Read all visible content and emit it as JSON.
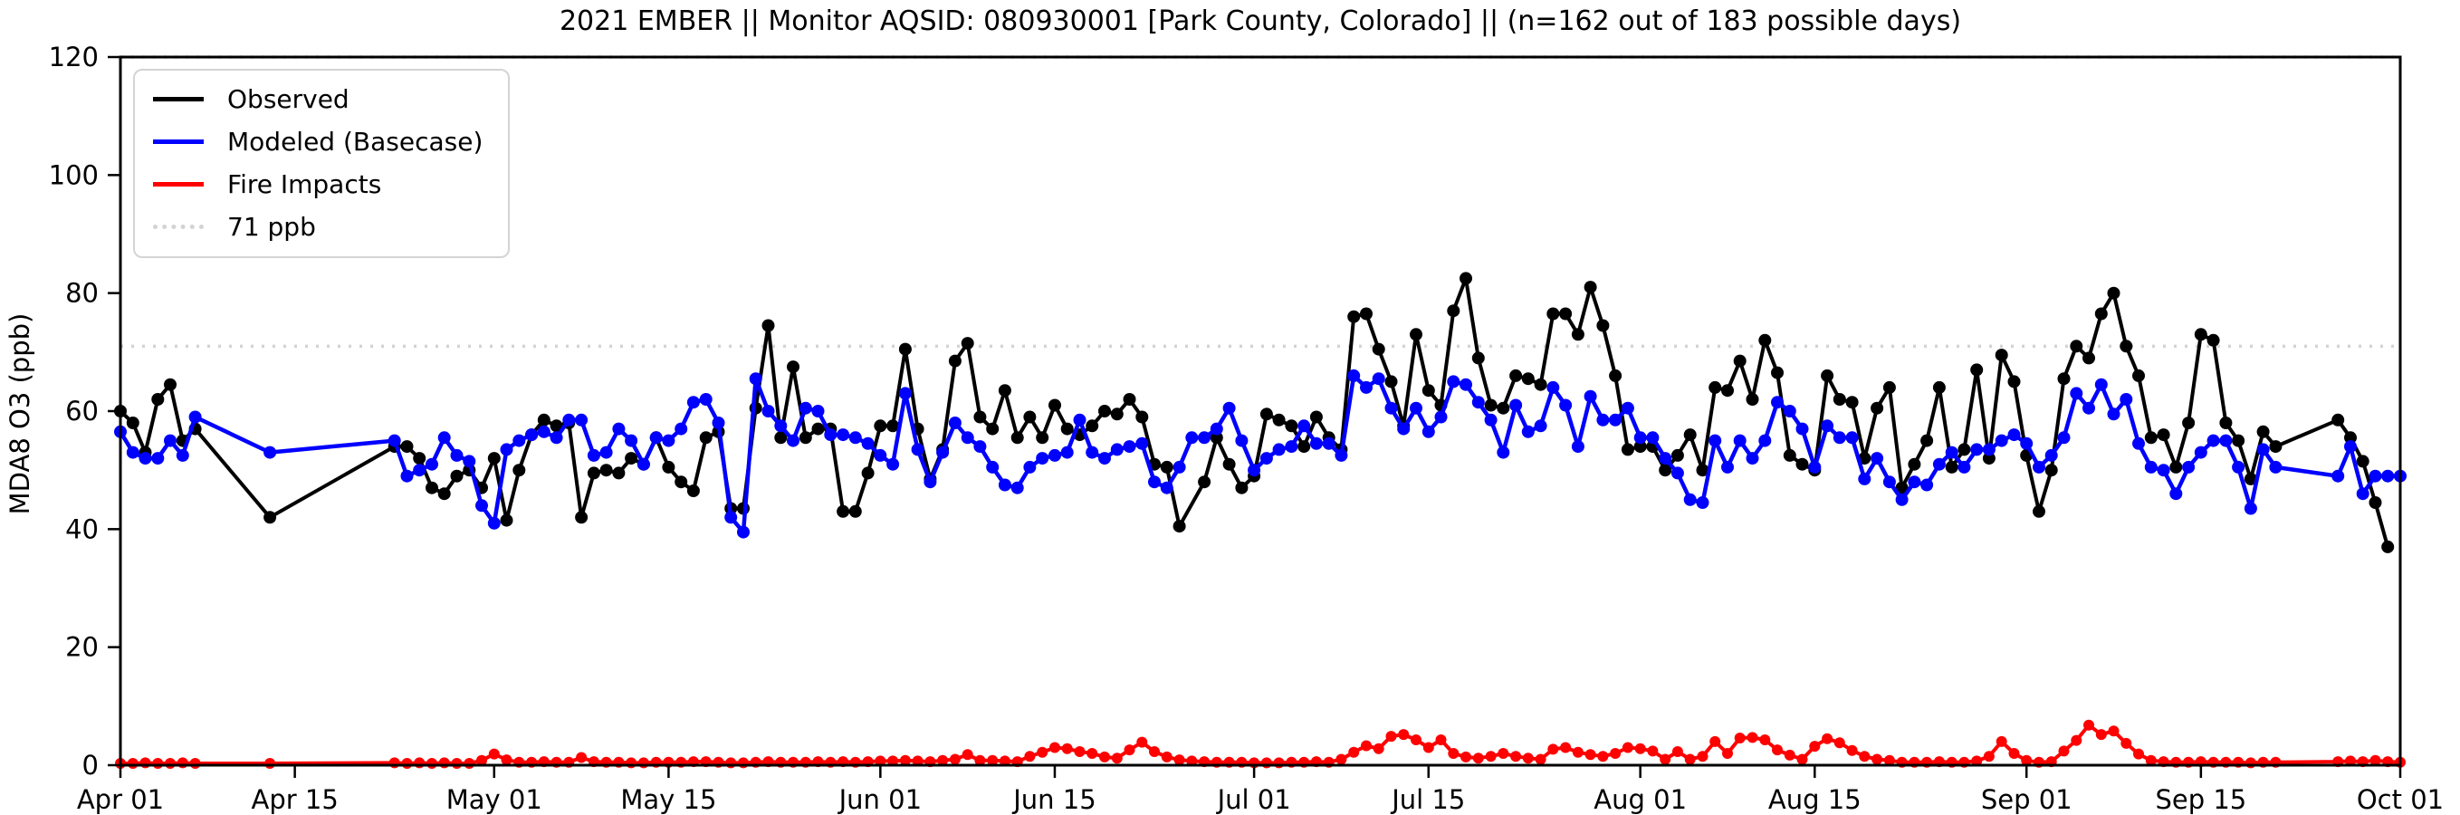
{
  "page": {
    "background": "#ffffff"
  },
  "chart_data": {
    "type": "line",
    "title": "2021 EMBER || Monitor AQSID: 080930001 [Park County, Colorado] || (n=162 out of 183 possible days)",
    "ylabel": "MDA8 O3 (ppb)",
    "xlabel": "",
    "ylim": [
      0,
      120
    ],
    "yticks": [
      0,
      20,
      40,
      60,
      80,
      100,
      120
    ],
    "x_span_days": 183,
    "grid": false,
    "legend_position": "upper-left",
    "xticks": [
      {
        "label": "Apr 01",
        "day": 0
      },
      {
        "label": "Apr 15",
        "day": 14
      },
      {
        "label": "May 01",
        "day": 30
      },
      {
        "label": "May 15",
        "day": 44
      },
      {
        "label": "Jun 01",
        "day": 61
      },
      {
        "label": "Jun 15",
        "day": 75
      },
      {
        "label": "Jul 01",
        "day": 91
      },
      {
        "label": "Jul 15",
        "day": 105
      },
      {
        "label": "Aug 01",
        "day": 122
      },
      {
        "label": "Aug 15",
        "day": 136
      },
      {
        "label": "Sep 01",
        "day": 153
      },
      {
        "label": "Sep 15",
        "day": 167
      },
      {
        "label": "Oct 01",
        "day": 183
      }
    ],
    "reference_lines": [
      {
        "value": 71,
        "label": "71 ppb",
        "color": "#d3d3d3",
        "dash": "dotted"
      },
      {
        "value": 120,
        "label": "",
        "color": "#d3d3d3",
        "dash": "dotted"
      }
    ],
    "legend": [
      {
        "label": "Observed",
        "color": "#000000",
        "dash": "solid"
      },
      {
        "label": "Modeled (Basecase)",
        "color": "#0000ff",
        "dash": "solid"
      },
      {
        "label": "Fire Impacts",
        "color": "#ff0000",
        "dash": "solid"
      },
      {
        "label": "71 ppb",
        "color": "#d3d3d3",
        "dash": "dotted"
      }
    ],
    "dates": [
      "Apr 01",
      "Apr 02",
      "Apr 03",
      "Apr 04",
      "Apr 05",
      "Apr 06",
      "Apr 07",
      "Apr 08",
      "Apr 09",
      "Apr 10",
      "Apr 11",
      "Apr 12",
      "Apr 13",
      "Apr 14",
      "Apr 15",
      "Apr 16",
      "Apr 17",
      "Apr 18",
      "Apr 19",
      "Apr 20",
      "Apr 21",
      "Apr 22",
      "Apr 23",
      "Apr 24",
      "Apr 25",
      "Apr 26",
      "Apr 27",
      "Apr 28",
      "Apr 29",
      "Apr 30",
      "May 01",
      "May 02",
      "May 03",
      "May 04",
      "May 05",
      "May 06",
      "May 07",
      "May 08",
      "May 09",
      "May 10",
      "May 11",
      "May 12",
      "May 13",
      "May 14",
      "May 15",
      "May 16",
      "May 17",
      "May 18",
      "May 19",
      "May 20",
      "May 21",
      "May 22",
      "May 23",
      "May 24",
      "May 25",
      "May 26",
      "May 27",
      "May 28",
      "May 29",
      "May 30",
      "May 31",
      "Jun 01",
      "Jun 02",
      "Jun 03",
      "Jun 04",
      "Jun 05",
      "Jun 06",
      "Jun 07",
      "Jun 08",
      "Jun 09",
      "Jun 10",
      "Jun 11",
      "Jun 12",
      "Jun 13",
      "Jun 14",
      "Jun 15",
      "Jun 16",
      "Jun 17",
      "Jun 18",
      "Jun 19",
      "Jun 20",
      "Jun 21",
      "Jun 22",
      "Jun 23",
      "Jun 24",
      "Jun 25",
      "Jun 26",
      "Jun 27",
      "Jun 28",
      "Jun 29",
      "Jun 30",
      "Jul 01",
      "Jul 02",
      "Jul 03",
      "Jul 04",
      "Jul 05",
      "Jul 06",
      "Jul 07",
      "Jul 08",
      "Jul 09",
      "Jul 10",
      "Jul 11",
      "Jul 12",
      "Jul 13",
      "Jul 14",
      "Jul 15",
      "Jul 16",
      "Jul 17",
      "Jul 18",
      "Jul 19",
      "Jul 20",
      "Jul 21",
      "Jul 22",
      "Jul 23",
      "Jul 24",
      "Jul 25",
      "Jul 26",
      "Jul 27",
      "Jul 28",
      "Jul 29",
      "Jul 30",
      "Jul 31",
      "Aug 01",
      "Aug 02",
      "Aug 03",
      "Aug 04",
      "Aug 05",
      "Aug 06",
      "Aug 07",
      "Aug 08",
      "Aug 09",
      "Aug 10",
      "Aug 11",
      "Aug 12",
      "Aug 13",
      "Aug 14",
      "Aug 15",
      "Aug 16",
      "Aug 17",
      "Aug 18",
      "Aug 19",
      "Aug 20",
      "Aug 21",
      "Aug 22",
      "Aug 23",
      "Aug 24",
      "Aug 25",
      "Aug 26",
      "Aug 27",
      "Aug 28",
      "Aug 29",
      "Aug 30",
      "Aug 31",
      "Sep 01",
      "Sep 02",
      "Sep 03",
      "Sep 04",
      "Sep 05",
      "Sep 06",
      "Sep 07",
      "Sep 08",
      "Sep 09",
      "Sep 10",
      "Sep 11",
      "Sep 12",
      "Sep 13",
      "Sep 14",
      "Sep 15",
      "Sep 16",
      "Sep 17",
      "Sep 18",
      "Sep 19",
      "Sep 20",
      "Sep 21",
      "Sep 22",
      "Sep 23",
      "Sep 24",
      "Sep 25",
      "Sep 26",
      "Sep 27",
      "Sep 28",
      "Sep 29",
      "Sep 30",
      "Oct 01"
    ],
    "series": [
      {
        "name": "Observed",
        "color": "#000000",
        "marker": "circle",
        "values": [
          60,
          58,
          53,
          62,
          64.5,
          55,
          57,
          null,
          null,
          null,
          null,
          null,
          42,
          null,
          null,
          null,
          null,
          null,
          null,
          null,
          null,
          null,
          54,
          54,
          52,
          47,
          46,
          49,
          50,
          47,
          52,
          41.5,
          50,
          56,
          58.5,
          57.5,
          58,
          42,
          49.5,
          50,
          49.5,
          52,
          51,
          55.5,
          50.5,
          48,
          46.5,
          55.5,
          56.5,
          43.5,
          43.5,
          60.5,
          74.5,
          55.5,
          67.5,
          55.5,
          57,
          57,
          43,
          43,
          49.5,
          57.5,
          57.5,
          70.5,
          57,
          48.5,
          53.5,
          68.5,
          71.5,
          59,
          57,
          63.5,
          55.5,
          59,
          55.5,
          61,
          57,
          56,
          57.5,
          60,
          59.5,
          62,
          59,
          51,
          50.5,
          40.5,
          null,
          48,
          55.5,
          51,
          47,
          49,
          59.5,
          58.5,
          57.5,
          54,
          59,
          55.5,
          53.5,
          76,
          76.5,
          70.5,
          65,
          57.5,
          73,
          63.5,
          61,
          77,
          82.5,
          69,
          61,
          60.5,
          66,
          65.5,
          64.5,
          76.5,
          76.5,
          73,
          81,
          74.5,
          66,
          53.5,
          54,
          54,
          50,
          52.5,
          56,
          50,
          64,
          63.5,
          68.5,
          62,
          72,
          66.5,
          52.5,
          51,
          50,
          66,
          62,
          61.5,
          52,
          60.5,
          64,
          47,
          51,
          55,
          64,
          50.5,
          53.5,
          67,
          52,
          69.5,
          65,
          52.5,
          43,
          50,
          65.5,
          71,
          69,
          76.5,
          80,
          71,
          66,
          55.5,
          56,
          50.5,
          58,
          73,
          72,
          58,
          55,
          48.5,
          56.5,
          54,
          null,
          null,
          null,
          null,
          58.5,
          55.5,
          51.5,
          44.5,
          37,
          null
        ]
      },
      {
        "name": "Modeled (Basecase)",
        "color": "#0000ff",
        "marker": "circle",
        "values": [
          56.5,
          53,
          52,
          52,
          55,
          52.5,
          59,
          null,
          null,
          null,
          null,
          null,
          53,
          null,
          null,
          null,
          null,
          null,
          null,
          null,
          null,
          null,
          55,
          49,
          50,
          51,
          55.5,
          52.5,
          51.5,
          44,
          41,
          53.5,
          55,
          56,
          56.5,
          55.5,
          58.5,
          58.5,
          52.5,
          53,
          57,
          55,
          51,
          55.5,
          55,
          57,
          61.5,
          62,
          58,
          42,
          39.5,
          65.5,
          60,
          57.5,
          55,
          60.5,
          60,
          56,
          56,
          55.5,
          54.5,
          52.5,
          51,
          63,
          53.5,
          48,
          53,
          58,
          55.5,
          54,
          50.5,
          47.5,
          47,
          50.5,
          52,
          52.5,
          53,
          58.5,
          53,
          52,
          53.5,
          54,
          54.5,
          48,
          47,
          50.5,
          55.5,
          55.5,
          57,
          60.5,
          55,
          50,
          52,
          53.5,
          54,
          57.5,
          54.5,
          54.5,
          52.5,
          66,
          64,
          65.5,
          60.5,
          57,
          60.5,
          56.5,
          59,
          65,
          64.5,
          61.5,
          58.5,
          53,
          61,
          56.5,
          57.5,
          64,
          61,
          54,
          62.5,
          58.5,
          58.5,
          60.5,
          55.5,
          55.5,
          52,
          49.5,
          45,
          44.5,
          55,
          50.5,
          55,
          52,
          55,
          61.5,
          60,
          57,
          50.5,
          57.5,
          55.5,
          55.5,
          48.5,
          52,
          48,
          45,
          48,
          47.5,
          51,
          53,
          50.5,
          53.5,
          53.5,
          55,
          56,
          54.5,
          50.5,
          52.5,
          55.5,
          63,
          60.5,
          64.5,
          59.5,
          62,
          54.5,
          50.5,
          50,
          46,
          50.5,
          53,
          55,
          55,
          50.5,
          43.5,
          53.5,
          50.5,
          null,
          null,
          null,
          null,
          49,
          54,
          46,
          49,
          49,
          49
        ]
      },
      {
        "name": "Fire Impacts",
        "color": "#ff0000",
        "marker": "circle",
        "values": [
          0.3,
          0.3,
          0.4,
          0.3,
          0.3,
          0.4,
          0.3,
          null,
          null,
          null,
          null,
          null,
          0.3,
          null,
          null,
          null,
          null,
          null,
          null,
          null,
          null,
          null,
          0.4,
          0.3,
          0.4,
          0.3,
          0.4,
          0.3,
          0.3,
          0.8,
          1.9,
          0.9,
          0.5,
          0.5,
          0.6,
          0.5,
          0.5,
          1.3,
          0.6,
          0.5,
          0.5,
          0.4,
          0.4,
          0.5,
          0.5,
          0.5,
          0.6,
          0.6,
          0.5,
          0.4,
          0.4,
          0.5,
          0.6,
          0.5,
          0.5,
          0.5,
          0.6,
          0.5,
          0.6,
          0.5,
          0.6,
          0.7,
          0.7,
          0.8,
          0.7,
          0.6,
          0.8,
          1.0,
          1.8,
          0.8,
          0.8,
          0.7,
          0.6,
          1.5,
          2.2,
          3.0,
          2.8,
          2.3,
          2.0,
          1.4,
          1.2,
          2.6,
          3.9,
          2.3,
          1.4,
          0.9,
          0.7,
          0.6,
          0.5,
          0.5,
          0.5,
          0.4,
          0.4,
          0.4,
          0.5,
          0.5,
          0.6,
          0.5,
          1.0,
          2.2,
          3.3,
          2.8,
          4.9,
          5.2,
          4.3,
          3.0,
          4.3,
          2.0,
          1.4,
          1.2,
          1.5,
          2.0,
          1.5,
          1.2,
          1.0,
          2.7,
          3.0,
          2.2,
          1.8,
          1.5,
          2.0,
          3.0,
          2.8,
          2.4,
          1.0,
          2.3,
          1.0,
          1.5,
          4.0,
          2.0,
          4.6,
          4.7,
          4.3,
          2.6,
          1.7,
          1.0,
          3.2,
          4.5,
          3.8,
          2.5,
          1.5,
          1.0,
          0.8,
          0.5,
          0.5,
          0.5,
          0.6,
          0.5,
          0.5,
          0.7,
          1.5,
          4.0,
          2.0,
          0.8,
          0.5,
          0.6,
          2.4,
          4.2,
          6.8,
          5.2,
          5.8,
          3.7,
          1.9,
          0.8,
          0.6,
          0.5,
          0.5,
          0.6,
          0.5,
          0.5,
          0.5,
          0.4,
          0.5,
          0.5,
          null,
          null,
          null,
          null,
          0.6,
          0.7,
          0.6,
          0.8,
          0.6,
          0.5
        ]
      }
    ]
  }
}
